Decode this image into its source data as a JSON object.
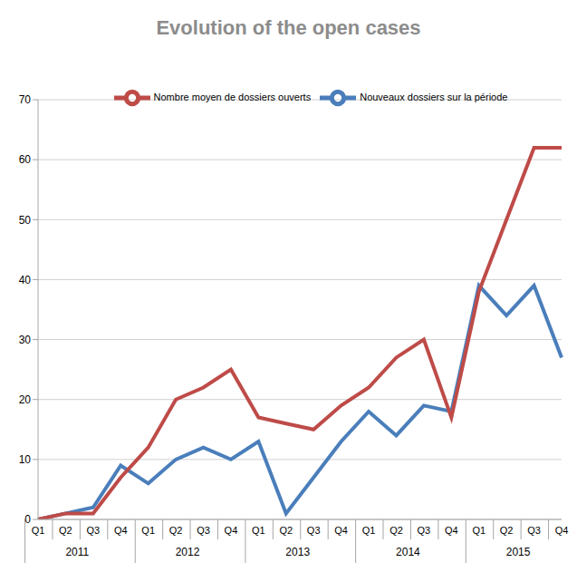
{
  "chart_data": {
    "type": "line",
    "title": "Evolution of the open cases",
    "categories": [
      "Q1",
      "Q2",
      "Q3",
      "Q4",
      "Q1",
      "Q2",
      "Q3",
      "Q4",
      "Q1",
      "Q2",
      "Q3",
      "Q4",
      "Q1",
      "Q2",
      "Q3",
      "Q4",
      "Q1",
      "Q2",
      "Q3",
      "Q4"
    ],
    "groups": [
      "2011",
      "2012",
      "2013",
      "2014",
      "2015"
    ],
    "series": [
      {
        "name": "Nouveaux dossiers sur la période",
        "color": "#4a7ebb",
        "values": [
          0,
          1,
          2,
          9,
          6,
          10,
          12,
          10,
          13,
          1,
          7,
          13,
          18,
          14,
          19,
          18,
          39,
          34,
          39,
          27
        ]
      },
      {
        "name": "Nombre moyen de dossiers ouverts",
        "color": "#be4b48",
        "values": [
          0,
          1,
          1,
          7,
          12,
          20,
          22,
          25,
          17,
          16,
          15,
          19,
          22,
          27,
          30,
          17,
          38,
          50,
          62,
          62
        ]
      }
    ],
    "ylim": [
      0,
      70
    ],
    "yticks": [
      0,
      10,
      20,
      30,
      40,
      50,
      60,
      70
    ],
    "grid": true,
    "legend": "top"
  }
}
